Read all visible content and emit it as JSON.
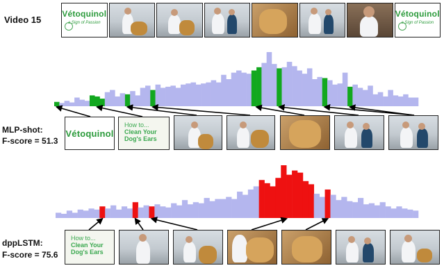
{
  "video_label": "Video 15",
  "brand": "Vétoquinol",
  "tagline": "a Sign of Passion",
  "title_card": {
    "line1": "How to...",
    "line2": "Clean Your",
    "line3": "Dog's Ears"
  },
  "sections": [
    {
      "name": "MLP-shot:",
      "score": "F-score = 51.3"
    },
    {
      "name": "dppLSTM:",
      "score": "F-score = 75.6"
    }
  ],
  "colors": {
    "bar": "#b4b6ee",
    "mlp": "#12a81f",
    "dpp": "#ee1111",
    "arrow": "#000000"
  },
  "chart_data": [
    {
      "type": "bar",
      "title": "",
      "xlabel": "",
      "ylabel": "",
      "ylim": [
        0,
        1
      ],
      "values": [
        0.08,
        0.06,
        0.1,
        0.07,
        0.16,
        0.12,
        0.1,
        0.2,
        0.18,
        0.14,
        0.26,
        0.3,
        0.18,
        0.24,
        0.22,
        0.28,
        0.2,
        0.34,
        0.38,
        0.3,
        0.4,
        0.34,
        0.36,
        0.38,
        0.34,
        0.4,
        0.42,
        0.44,
        0.4,
        0.42,
        0.44,
        0.48,
        0.44,
        0.58,
        0.5,
        0.62,
        0.66,
        0.62,
        0.6,
        0.66,
        0.72,
        0.8,
        1.0,
        0.78,
        0.7,
        0.72,
        0.82,
        0.74,
        0.66,
        0.6,
        0.7,
        0.5,
        0.54,
        0.52,
        0.48,
        0.4,
        0.42,
        0.62,
        0.36,
        0.4,
        0.34,
        0.3,
        0.38,
        0.22,
        0.26,
        0.18,
        0.3,
        0.2,
        0.18,
        0.22,
        0.16,
        0.16
      ],
      "selected": [
        0,
        7,
        8,
        9,
        14,
        19,
        39,
        40,
        44,
        53,
        58
      ]
    },
    {
      "type": "bar",
      "title": "",
      "xlabel": "",
      "ylabel": "",
      "ylim": [
        0,
        1
      ],
      "values": [
        0.1,
        0.08,
        0.14,
        0.1,
        0.16,
        0.14,
        0.18,
        0.16,
        0.22,
        0.18,
        0.24,
        0.16,
        0.22,
        0.18,
        0.3,
        0.2,
        0.24,
        0.22,
        0.26,
        0.22,
        0.2,
        0.28,
        0.24,
        0.34,
        0.26,
        0.3,
        0.28,
        0.38,
        0.32,
        0.36,
        0.36,
        0.4,
        0.36,
        0.5,
        0.44,
        0.54,
        0.6,
        0.72,
        0.66,
        0.6,
        0.76,
        1.0,
        0.82,
        0.9,
        0.86,
        0.7,
        0.64,
        0.46,
        0.4,
        0.54,
        0.44,
        0.34,
        0.4,
        0.32,
        0.3,
        0.38,
        0.26,
        0.28,
        0.24,
        0.3,
        0.22,
        0.18,
        0.22,
        0.18,
        0.16,
        0.14
      ],
      "selected": [
        8,
        14,
        17,
        37,
        38,
        39,
        40,
        41,
        42,
        43,
        44,
        45,
        46,
        49
      ]
    }
  ]
}
